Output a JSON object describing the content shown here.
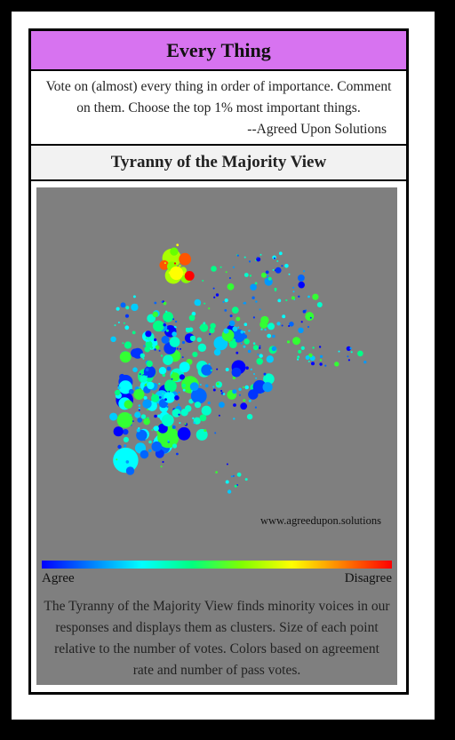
{
  "card": {
    "title": "Every Thing",
    "description": "Vote on (almost) every thing in order of importance. Comment on them. Choose the top 1% most important things.",
    "signature": "--Agreed Upon Solutions"
  },
  "view": {
    "title": "Tyranny of the Majority View",
    "website": "www.agreedupon.solutions",
    "scale_left": "Agree",
    "scale_right": "Disagree",
    "caption": "The Tyranny of the Majority View finds minority voices in our responses and displays them as clusters. Size of each point relative to the number of votes. Colors based on agreement rate and number of pass votes."
  },
  "colors": {
    "header_bg": "#d773f0",
    "panel_bg": "#7f7f7f"
  }
}
